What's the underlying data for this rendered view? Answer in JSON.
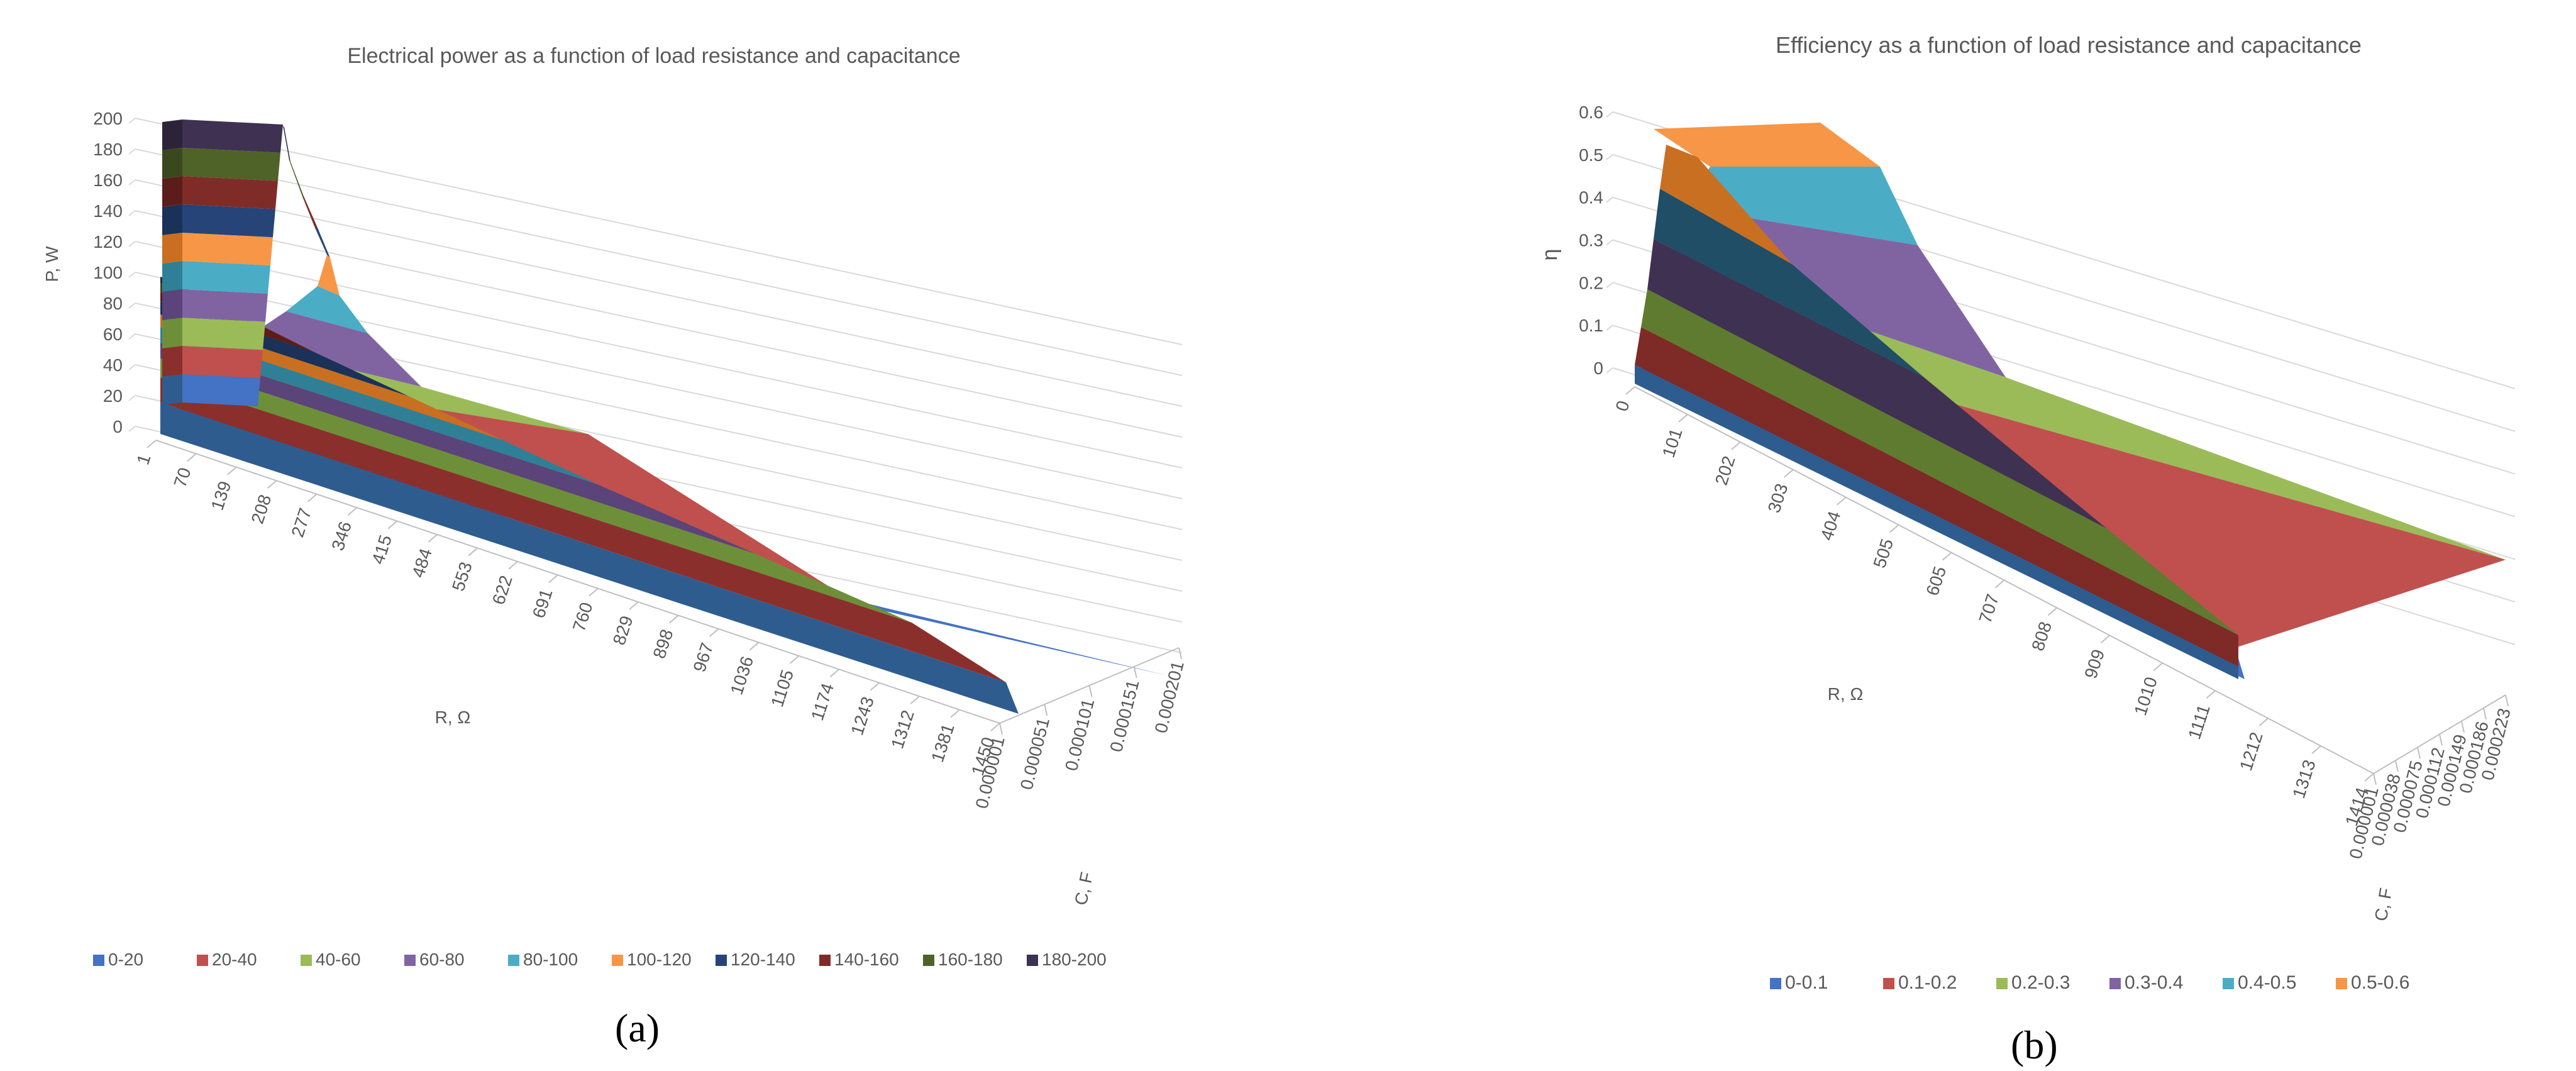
{
  "chart_data": [
    {
      "type": "surface",
      "panel_label": "(a)",
      "title": "Electrical power as a function of load resistance and capacitance",
      "zlabel": "P, W",
      "xlabel": "R, Ω",
      "ylabel": "C, F",
      "zlim": [
        0,
        200
      ],
      "z_ticks": [
        "0",
        "20",
        "40",
        "60",
        "80",
        "100",
        "120",
        "140",
        "160",
        "180",
        "200"
      ],
      "x_ticks": [
        "1",
        "70",
        "139",
        "208",
        "277",
        "346",
        "415",
        "484",
        "553",
        "622",
        "691",
        "760",
        "829",
        "898",
        "967",
        "1036",
        "1105",
        "1174",
        "1243",
        "1312",
        "1381",
        "1450"
      ],
      "y_ticks": [
        "0.000001",
        "0.000051",
        "0.000101",
        "0.000151",
        "0.000201"
      ],
      "grid": true,
      "legend_position": "bottom",
      "bands": [
        {
          "label": "0-20",
          "color": "#4472C4",
          "depth": "#2E5C8F"
        },
        {
          "label": "20-40",
          "color": "#C0504D",
          "depth": "#8B2F2C"
        },
        {
          "label": "40-60",
          "color": "#9BBB59",
          "depth": "#6E8F3A"
        },
        {
          "label": "60-80",
          "color": "#8064A2",
          "depth": "#5A447A"
        },
        {
          "label": "80-100",
          "color": "#4BACC6",
          "depth": "#2F8096"
        },
        {
          "label": "100-120",
          "color": "#F79646",
          "depth": "#C96F22"
        },
        {
          "label": "120-140",
          "color": "#264478",
          "depth": "#1A3158"
        },
        {
          "label": "140-160",
          "color": "#7F2C28",
          "depth": "#5C1D1A"
        },
        {
          "label": "160-180",
          "color": "#4F6228",
          "depth": "#3A481D"
        },
        {
          "label": "180-200",
          "color": "#3F3151",
          "depth": "#2D2339"
        }
      ]
    },
    {
      "type": "surface",
      "panel_label": "(b)",
      "title": "Efficiency as a function of load resistance and capacitance",
      "zlabel": "η",
      "xlabel": "R, Ω",
      "ylabel": "C, F",
      "zlim": [
        0,
        0.6
      ],
      "z_ticks": [
        "0",
        "0.1",
        "0.2",
        "0.3",
        "0.4",
        "0.5",
        "0.6"
      ],
      "x_ticks": [
        "0",
        "101",
        "202",
        "303",
        "404",
        "505",
        "605",
        "707",
        "808",
        "909",
        "1010",
        "1111",
        "1212",
        "1313",
        "1414"
      ],
      "y_ticks": [
        "0.000001",
        "0.000038",
        "0.000075",
        "0.000112",
        "0.000149",
        "0.000186",
        "0.000223"
      ],
      "grid": true,
      "legend_position": "bottom",
      "bands": [
        {
          "label": "0-0.1",
          "color": "#4472C4",
          "depth": "#2E5C8F"
        },
        {
          "label": "0.1-0.2",
          "color": "#C0504D",
          "depth": "#7E2A27"
        },
        {
          "label": "0.2-0.3",
          "color": "#9BBB59",
          "depth": "#5E7B30"
        },
        {
          "label": "0.3-0.4",
          "color": "#8064A2",
          "depth": "#3F3151"
        },
        {
          "label": "0.4-0.5",
          "color": "#4BACC6",
          "depth": "#1F4E66"
        },
        {
          "label": "0.5-0.6",
          "color": "#F79646",
          "depth": "#C96F22"
        }
      ]
    }
  ]
}
